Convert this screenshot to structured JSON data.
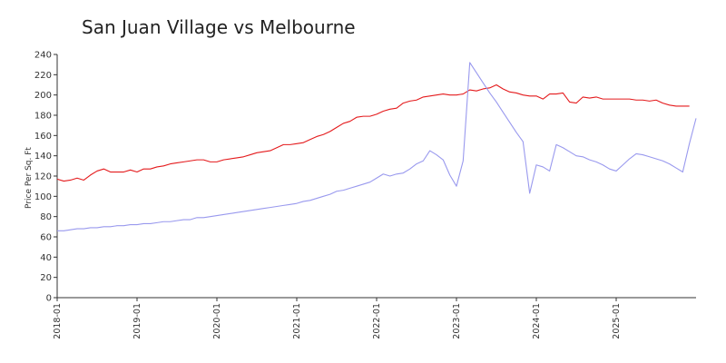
{
  "chart_data": {
    "type": "line",
    "title": "San Juan Village vs Melbourne",
    "xlabel": "",
    "ylabel": "Price Per Sq. Ft",
    "ylim": [
      0,
      240
    ],
    "yticks": [
      "0",
      "20",
      "40",
      "60",
      "80",
      "100",
      "120",
      "140",
      "160",
      "180",
      "200",
      "220",
      "240"
    ],
    "xticks": [
      {
        "label": "2018-01",
        "month": 0
      },
      {
        "label": "2019-01",
        "month": 12
      },
      {
        "label": "2020-01",
        "month": 24
      },
      {
        "label": "2021-01",
        "month": 36
      },
      {
        "label": "2022-01",
        "month": 48
      },
      {
        "label": "2023-01",
        "month": 60
      },
      {
        "label": "2024-01",
        "month": 72
      },
      {
        "label": "2025-01",
        "month": 84
      }
    ],
    "grid": false,
    "legend": "none",
    "series": [
      {
        "color": "#e41a1c",
        "points": [
          [
            0,
            117
          ],
          [
            1,
            115
          ],
          [
            2,
            116
          ],
          [
            3,
            118
          ],
          [
            4,
            116
          ],
          [
            5,
            121
          ],
          [
            6,
            125
          ],
          [
            7,
            127
          ],
          [
            8,
            124
          ],
          [
            9,
            124
          ],
          [
            10,
            124
          ],
          [
            11,
            126
          ],
          [
            12,
            124
          ],
          [
            13,
            127
          ],
          [
            14,
            127
          ],
          [
            15,
            129
          ],
          [
            16,
            130
          ],
          [
            17,
            132
          ],
          [
            18,
            133
          ],
          [
            19,
            134
          ],
          [
            20,
            135
          ],
          [
            21,
            136
          ],
          [
            22,
            136
          ],
          [
            23,
            134
          ],
          [
            24,
            134
          ],
          [
            25,
            136
          ],
          [
            26,
            137
          ],
          [
            27,
            138
          ],
          [
            28,
            139
          ],
          [
            29,
            141
          ],
          [
            30,
            143
          ],
          [
            31,
            144
          ],
          [
            32,
            145
          ],
          [
            33,
            148
          ],
          [
            34,
            151
          ],
          [
            35,
            151
          ],
          [
            36,
            152
          ],
          [
            37,
            153
          ],
          [
            38,
            156
          ],
          [
            39,
            159
          ],
          [
            40,
            161
          ],
          [
            41,
            164
          ],
          [
            42,
            168
          ],
          [
            43,
            172
          ],
          [
            44,
            174
          ],
          [
            45,
            178
          ],
          [
            46,
            179
          ],
          [
            47,
            179
          ],
          [
            48,
            181
          ],
          [
            49,
            184
          ],
          [
            50,
            186
          ],
          [
            51,
            187
          ],
          [
            52,
            192
          ],
          [
            53,
            194
          ],
          [
            54,
            195
          ],
          [
            55,
            198
          ],
          [
            56,
            199
          ],
          [
            57,
            200
          ],
          [
            58,
            201
          ],
          [
            59,
            200
          ],
          [
            60,
            200
          ],
          [
            61,
            201
          ],
          [
            62,
            205
          ],
          [
            63,
            204
          ],
          [
            64,
            206
          ],
          [
            65,
            207
          ],
          [
            66,
            210
          ],
          [
            67,
            206
          ],
          [
            68,
            203
          ],
          [
            69,
            202
          ],
          [
            70,
            200
          ],
          [
            71,
            199
          ],
          [
            72,
            199
          ],
          [
            73,
            196
          ],
          [
            74,
            201
          ],
          [
            75,
            201
          ],
          [
            76,
            202
          ],
          [
            77,
            193
          ],
          [
            78,
            192
          ],
          [
            79,
            198
          ],
          [
            80,
            197
          ],
          [
            81,
            198
          ],
          [
            82,
            196
          ],
          [
            83,
            196
          ],
          [
            84,
            196
          ],
          [
            85,
            196
          ],
          [
            86,
            196
          ],
          [
            87,
            195
          ],
          [
            88,
            195
          ],
          [
            89,
            194
          ],
          [
            90,
            195
          ],
          [
            91,
            192
          ],
          [
            92,
            190
          ],
          [
            93,
            189
          ],
          [
            94,
            189
          ],
          [
            95,
            189
          ]
        ]
      },
      {
        "color": "#9999ee",
        "points": [
          [
            0,
            66
          ],
          [
            1,
            66
          ],
          [
            2,
            67
          ],
          [
            3,
            68
          ],
          [
            4,
            68
          ],
          [
            5,
            69
          ],
          [
            6,
            69
          ],
          [
            7,
            70
          ],
          [
            8,
            70
          ],
          [
            9,
            71
          ],
          [
            10,
            71
          ],
          [
            11,
            72
          ],
          [
            12,
            72
          ],
          [
            13,
            73
          ],
          [
            14,
            73
          ],
          [
            15,
            74
          ],
          [
            16,
            75
          ],
          [
            17,
            75
          ],
          [
            18,
            76
          ],
          [
            19,
            77
          ],
          [
            20,
            77
          ],
          [
            21,
            79
          ],
          [
            22,
            79
          ],
          [
            23,
            80
          ],
          [
            24,
            81
          ],
          [
            25,
            82
          ],
          [
            26,
            83
          ],
          [
            27,
            84
          ],
          [
            28,
            85
          ],
          [
            29,
            86
          ],
          [
            30,
            87
          ],
          [
            31,
            88
          ],
          [
            32,
            89
          ],
          [
            33,
            90
          ],
          [
            34,
            91
          ],
          [
            35,
            92
          ],
          [
            36,
            93
          ],
          [
            37,
            95
          ],
          [
            38,
            96
          ],
          [
            39,
            98
          ],
          [
            40,
            100
          ],
          [
            41,
            102
          ],
          [
            42,
            105
          ],
          [
            43,
            106
          ],
          [
            44,
            108
          ],
          [
            45,
            110
          ],
          [
            46,
            112
          ],
          [
            47,
            114
          ],
          [
            48,
            118
          ],
          [
            49,
            122
          ],
          [
            50,
            120
          ],
          [
            51,
            122
          ],
          [
            52,
            123
          ],
          [
            53,
            127
          ],
          [
            54,
            132
          ],
          [
            55,
            135
          ],
          [
            56,
            145
          ],
          [
            57,
            141
          ],
          [
            58,
            136
          ],
          [
            59,
            121
          ],
          [
            60,
            110
          ],
          [
            61,
            135
          ],
          [
            62,
            232
          ],
          [
            63,
            222
          ],
          [
            64,
            212
          ],
          [
            65,
            202
          ],
          [
            66,
            193
          ],
          [
            67,
            183
          ],
          [
            68,
            173
          ],
          [
            69,
            163
          ],
          [
            70,
            154
          ],
          [
            71,
            103
          ],
          [
            72,
            131
          ],
          [
            73,
            129
          ],
          [
            74,
            125
          ],
          [
            75,
            151
          ],
          [
            76,
            148
          ],
          [
            77,
            144
          ],
          [
            78,
            140
          ],
          [
            79,
            139
          ],
          [
            80,
            136
          ],
          [
            81,
            134
          ],
          [
            82,
            131
          ],
          [
            83,
            127
          ],
          [
            84,
            125
          ],
          [
            85,
            131
          ],
          [
            86,
            137
          ],
          [
            87,
            142
          ],
          [
            88,
            141
          ],
          [
            89,
            139
          ],
          [
            90,
            137
          ],
          [
            91,
            135
          ],
          [
            92,
            132
          ],
          [
            93,
            128
          ],
          [
            94,
            124
          ],
          [
            95,
            152
          ],
          [
            96,
            177
          ]
        ]
      }
    ]
  }
}
